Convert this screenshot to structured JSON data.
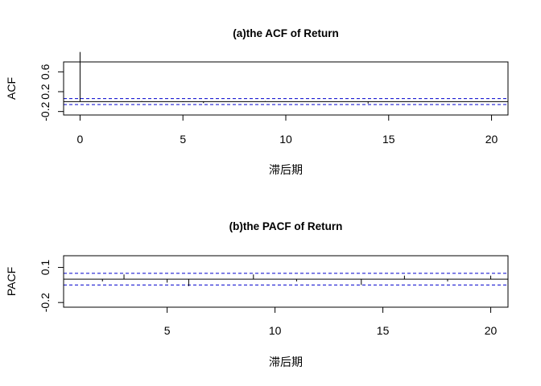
{
  "chart_data": [
    {
      "type": "bar",
      "title": "(a)the ACF of Return",
      "xlabel": "滞后期",
      "ylabel": "ACF",
      "xlim": [
        -0.8,
        20.8
      ],
      "ylim": [
        -0.27,
        0.8
      ],
      "xticks": [
        "0",
        "5",
        "10",
        "15",
        "20"
      ],
      "yticks": [
        "-0.2",
        "0.2",
        "0.6"
      ],
      "lags": [
        0,
        1,
        2,
        3,
        4,
        5,
        6,
        7,
        8,
        9,
        10,
        11,
        12,
        13,
        14,
        15,
        16,
        17,
        18,
        19,
        20
      ],
      "values": [
        1.0,
        0.0,
        0.0,
        0.01,
        0.0,
        -0.01,
        -0.03,
        0.0,
        0.0,
        0.01,
        0.0,
        0.0,
        0.0,
        0.0,
        -0.04,
        0.0,
        0.0,
        0.0,
        0.0,
        0.0,
        0.0
      ],
      "conf_band": [
        -0.06,
        0.06
      ],
      "colors": {
        "bars": "#000000",
        "band": "#0000cc"
      }
    },
    {
      "type": "bar",
      "title": "(b)the PACF of Return",
      "xlabel": "滞后期",
      "ylabel": "PACF",
      "xlim": [
        0.2,
        20.8
      ],
      "ylim": [
        -0.24,
        0.2
      ],
      "xticks": [
        "5",
        "10",
        "15",
        "20"
      ],
      "yticks": [
        "-0.2",
        "0.1"
      ],
      "lags": [
        1,
        2,
        3,
        4,
        5,
        6,
        7,
        8,
        9,
        10,
        11,
        12,
        13,
        14,
        15,
        16,
        17,
        18,
        19,
        20
      ],
      "values": [
        0.0,
        -0.02,
        0.04,
        0.0,
        -0.03,
        -0.06,
        0.0,
        0.0,
        0.04,
        0.0,
        -0.02,
        0.0,
        0.0,
        -0.05,
        0.0,
        0.03,
        0.0,
        -0.02,
        0.0,
        0.03
      ],
      "conf_band": [
        -0.05,
        0.05
      ],
      "colors": {
        "bars": "#000000",
        "band": "#0000cc"
      }
    }
  ]
}
